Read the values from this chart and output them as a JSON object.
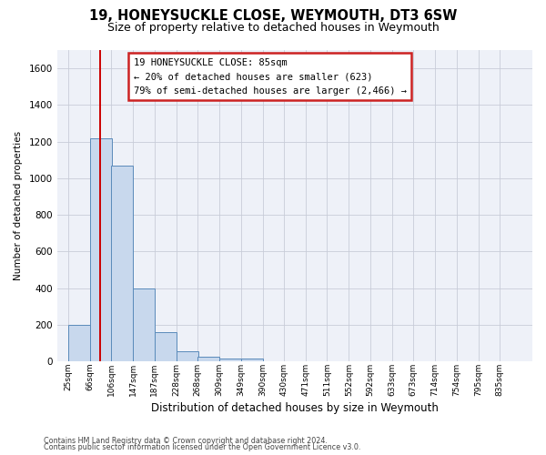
{
  "title": "19, HONEYSUCKLE CLOSE, WEYMOUTH, DT3 6SW",
  "subtitle": "Size of property relative to detached houses in Weymouth",
  "xlabel": "Distribution of detached houses by size in Weymouth",
  "ylabel": "Number of detached properties",
  "footer_line1": "Contains HM Land Registry data © Crown copyright and database right 2024.",
  "footer_line2": "Contains public sector information licensed under the Open Government Licence v3.0.",
  "bin_edges": [
    25,
    66,
    106,
    147,
    187,
    228,
    268,
    309,
    349,
    390,
    430,
    471,
    511,
    552,
    592,
    633,
    673,
    714,
    754,
    795,
    835
  ],
  "bar_heights": [
    200,
    1220,
    1070,
    400,
    160,
    55,
    25,
    15,
    15,
    0,
    0,
    0,
    0,
    0,
    0,
    0,
    0,
    0,
    0,
    0
  ],
  "property_size": 85,
  "bar_color": "#c8d8ed",
  "bar_edge_color": "#5a8aba",
  "red_line_color": "#cc0000",
  "annotation_line1": "19 HONEYSUCKLE CLOSE: 85sqm",
  "annotation_line2": "← 20% of detached houses are smaller (623)",
  "annotation_line3": "79% of semi-detached houses are larger (2,466) →",
  "annotation_box_edge": "#cc2222",
  "ylim_max": 1700,
  "yticks": [
    0,
    200,
    400,
    600,
    800,
    1000,
    1200,
    1400,
    1600
  ],
  "grid_color": "#c8ccd8",
  "fig_bg_color": "#ffffff",
  "ax_bg_color": "#eef1f8",
  "title_fontsize": 10.5,
  "subtitle_fontsize": 9,
  "xlabel_fontsize": 8.5,
  "ylabel_fontsize": 7.5,
  "tick_fontsize": 6.5,
  "ytick_fontsize": 7.5,
  "footer_fontsize": 5.8,
  "annot_fontsize": 7.5
}
